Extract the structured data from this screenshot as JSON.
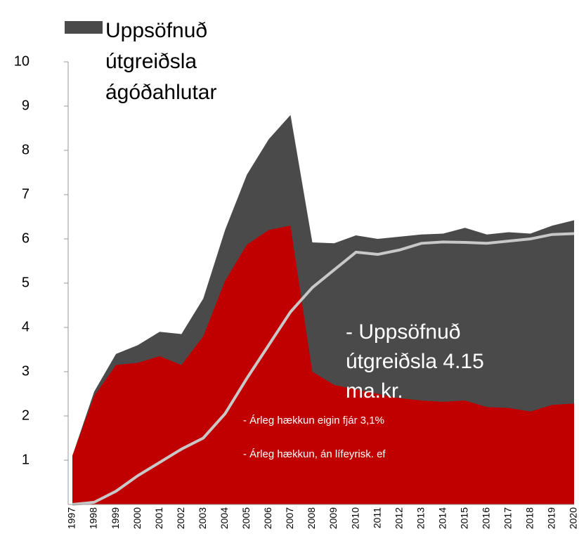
{
  "chart_data": {
    "type": "area",
    "categories": [
      "1997",
      "1998",
      "1999",
      "2000",
      "2001",
      "2002",
      "2003",
      "2004",
      "2005",
      "2006",
      "2007",
      "2008",
      "2009",
      "2010",
      "2011",
      "2012",
      "2013",
      "2014",
      "2015",
      "2016",
      "2017",
      "2018",
      "2019",
      "2020"
    ],
    "series": [
      {
        "name": "Uppsöfnuð útgreiðsla ágóðahlutar",
        "color": "#4a4a4a",
        "kind": "area",
        "values": [
          1.1,
          2.55,
          3.4,
          3.6,
          3.9,
          3.85,
          4.65,
          6.2,
          7.45,
          8.25,
          8.8,
          5.92,
          5.9,
          6.08,
          6.0,
          6.05,
          6.1,
          6.12,
          6.25,
          6.1,
          6.15,
          6.12,
          6.3,
          6.42
        ]
      },
      {
        "color": "#c00000",
        "kind": "area",
        "values": [
          1.1,
          2.45,
          3.15,
          3.2,
          3.35,
          3.15,
          3.8,
          5.05,
          5.87,
          6.2,
          6.3,
          3.0,
          2.7,
          2.6,
          2.5,
          2.4,
          2.35,
          2.32,
          2.35,
          2.2,
          2.18,
          2.1,
          2.25,
          2.28
        ]
      },
      {
        "color": "#c8c8c8",
        "kind": "line",
        "values": [
          0,
          0.05,
          0.3,
          0.65,
          0.95,
          1.25,
          1.5,
          2.05,
          2.85,
          3.6,
          4.35,
          4.9,
          5.3,
          5.7,
          5.65,
          5.75,
          5.9,
          5.93,
          5.92,
          5.9,
          5.95,
          6.0,
          6.1,
          6.12
        ]
      }
    ],
    "ylim": [
      0,
      10
    ],
    "yticks": [
      1,
      2,
      3,
      4,
      5,
      6,
      7,
      8,
      9,
      10
    ],
    "annotations": [
      "- Uppsöfnuð útgreiðsla 4.15 ma.kr.",
      "- Árleg hækkun eigin fjár 3,1%",
      "- Árleg hækkun, án lífeyrisk. ef"
    ]
  }
}
